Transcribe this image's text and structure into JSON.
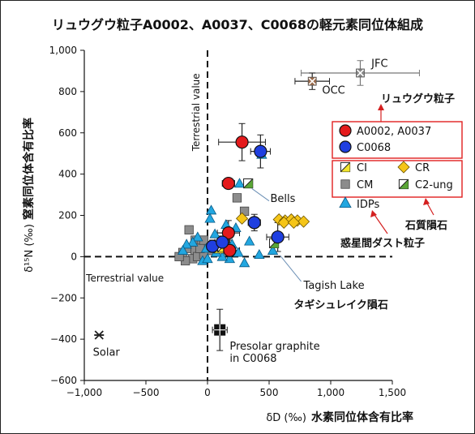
{
  "chart_data": {
    "type": "scatter",
    "title": "リュウグウ粒子A0002、A0037、C0068の軽元素同位体組成",
    "xlabel": "δD (‰)",
    "xlabel_jp": "水素同位体含有比率",
    "ylabel": "δ¹⁵N (‰)",
    "ylabel_jp": "窒素同位体含有比率",
    "xlim": [
      -1000,
      1500
    ],
    "ylim": [
      -600,
      1000
    ],
    "xticks": [
      -1000,
      -500,
      0,
      500,
      1000,
      1500
    ],
    "xtick_labels": [
      "−1,000",
      "−500",
      "0",
      "500",
      "1,000",
      "1,500"
    ],
    "yticks": [
      -600,
      -400,
      -200,
      0,
      200,
      400,
      600,
      800,
      1000
    ],
    "ytick_labels": [
      "−600",
      "−400",
      "−200",
      "0",
      "200",
      "400",
      "600",
      "800",
      "1,000"
    ],
    "grid": false,
    "reference_lines": [
      {
        "label": "Terrestrial value",
        "axis": "x",
        "value": 0
      },
      {
        "label": "Terrestrial value",
        "axis": "y",
        "value": 0
      }
    ],
    "annotations": [
      {
        "label": "JFC",
        "x": 1240,
        "y": 890
      },
      {
        "label": "OCC",
        "x": 850,
        "y": 850
      },
      {
        "label": "Bells",
        "x": 330,
        "y": 300
      },
      {
        "label": "Tagish Lake",
        "x": 590,
        "y": 0
      },
      {
        "label": "タギシュレイク隕石"
      },
      {
        "label": "Presolar graphite",
        "x": 100,
        "y": -360
      },
      {
        "label": "in C0068"
      },
      {
        "label": "Solar",
        "x": -880,
        "y": -380
      },
      {
        "label": "リュウグウ粒子"
      },
      {
        "label": "石質隕石"
      },
      {
        "label": "惑星間ダスト粒子"
      }
    ],
    "legend": {
      "placement": "right",
      "groups": [
        {
          "items": [
            {
              "name": "A0002, A0037",
              "marker": "circle",
              "color": "#e41a1c"
            },
            {
              "name": "C0068",
              "marker": "circle",
              "color": "#1f3fe0"
            }
          ]
        },
        {
          "items": [
            {
              "name": "CI",
              "marker": "square-half",
              "color": "#f2e52c"
            },
            {
              "name": "CR",
              "marker": "diamond",
              "color": "#f5c518"
            },
            {
              "name": "CM",
              "marker": "square",
              "color": "#8c8c8c"
            },
            {
              "name": "C2-ung",
              "marker": "square-half",
              "color": "#5aa636"
            }
          ]
        },
        {
          "items": [
            {
              "name": "IDPs",
              "marker": "triangle",
              "color": "#22a7e0"
            }
          ]
        }
      ]
    },
    "series": [
      {
        "name": "A0002, A0037",
        "color": "#e41a1c",
        "points": [
          {
            "x": 280,
            "y": 555,
            "xerr": 190,
            "yerr": 90
          },
          {
            "x": 170,
            "y": 355,
            "xerr": 50,
            "yerr": 25
          },
          {
            "x": 170,
            "y": 115,
            "xerr": 90,
            "yerr": 60
          },
          {
            "x": 180,
            "y": 30,
            "xerr": 80,
            "yerr": 50
          }
        ]
      },
      {
        "name": "C0068",
        "color": "#1f3fe0",
        "points": [
          {
            "x": 430,
            "y": 510,
            "xerr": 80,
            "yerr": 80
          },
          {
            "x": 380,
            "y": 165,
            "xerr": 50,
            "yerr": 40
          },
          {
            "x": 570,
            "y": 95,
            "xerr": 90,
            "yerr": 70
          },
          {
            "x": 40,
            "y": 50,
            "xerr": 40,
            "yerr": 30
          },
          {
            "x": 120,
            "y": 70,
            "xerr": 60,
            "yerr": 30
          }
        ]
      },
      {
        "name": "CI",
        "color": "#f2e52c",
        "points": [
          {
            "x": 90,
            "y": 40
          },
          {
            "x": 120,
            "y": 45
          }
        ]
      },
      {
        "name": "CR",
        "color": "#f5c518",
        "points": [
          {
            "x": 280,
            "y": 185
          },
          {
            "x": 580,
            "y": 180
          },
          {
            "x": 630,
            "y": 175
          },
          {
            "x": 680,
            "y": 180
          },
          {
            "x": 730,
            "y": 175
          },
          {
            "x": 780,
            "y": 170
          },
          {
            "x": 620,
            "y": 165
          },
          {
            "x": 700,
            "y": 165
          }
        ]
      },
      {
        "name": "CM",
        "color": "#8c8c8c",
        "points": [
          {
            "x": -150,
            "y": 130
          },
          {
            "x": -100,
            "y": 80
          },
          {
            "x": -50,
            "y": 60
          },
          {
            "x": -200,
            "y": 20
          },
          {
            "x": -150,
            "y": 40
          },
          {
            "x": -100,
            "y": 30
          },
          {
            "x": -50,
            "y": 20
          },
          {
            "x": 0,
            "y": 50
          },
          {
            "x": 20,
            "y": 30
          },
          {
            "x": -120,
            "y": -10
          },
          {
            "x": -180,
            "y": -20
          },
          {
            "x": -80,
            "y": 0
          },
          {
            "x": -30,
            "y": 10
          },
          {
            "x": -230,
            "y": 0
          },
          {
            "x": -60,
            "y": 40
          },
          {
            "x": 240,
            "y": 285
          },
          {
            "x": 300,
            "y": 220
          },
          {
            "x": -30,
            "y": 80
          }
        ]
      },
      {
        "name": "C2-ung",
        "color": "#5aa636",
        "points": [
          {
            "x": 330,
            "y": 355
          },
          {
            "x": 540,
            "y": 65
          }
        ]
      },
      {
        "name": "IDPs",
        "color": "#22a7e0",
        "points": [
          {
            "x": 440,
            "y": 495
          },
          {
            "x": 260,
            "y": 355
          },
          {
            "x": 30,
            "y": 225
          },
          {
            "x": 20,
            "y": 185
          },
          {
            "x": 150,
            "y": 155
          },
          {
            "x": 230,
            "y": 140
          },
          {
            "x": 60,
            "y": 110
          },
          {
            "x": 340,
            "y": 75
          },
          {
            "x": -80,
            "y": 95
          },
          {
            "x": -120,
            "y": 70
          },
          {
            "x": -170,
            "y": 60
          },
          {
            "x": -10,
            "y": 40
          },
          {
            "x": 100,
            "y": 60
          },
          {
            "x": 250,
            "y": 20
          },
          {
            "x": 180,
            "y": -10
          },
          {
            "x": 300,
            "y": -30
          },
          {
            "x": 420,
            "y": 10
          },
          {
            "x": 550,
            "y": 90
          },
          {
            "x": 530,
            "y": 30
          },
          {
            "x": -40,
            "y": -20
          },
          {
            "x": -200,
            "y": 30
          },
          {
            "x": 0,
            "y": -10
          },
          {
            "x": 120,
            "y": 0
          },
          {
            "x": 200,
            "y": 60
          },
          {
            "x": 70,
            "y": 20
          }
        ]
      },
      {
        "name": "JFC",
        "color": "#888888",
        "points": [
          {
            "x": 1240,
            "y": 890,
            "xerr": 480,
            "yerr": 60
          }
        ]
      },
      {
        "name": "OCC",
        "color": "#9a6a4a",
        "points": [
          {
            "x": 850,
            "y": 850,
            "xerr": 140,
            "yerr": 40
          }
        ]
      },
      {
        "name": "Solar",
        "color": "#222222",
        "points": [
          {
            "x": -880,
            "y": -380
          }
        ]
      },
      {
        "name": "Presolar graphite",
        "color": "#111111",
        "points": [
          {
            "x": 100,
            "y": -355,
            "xerr": 60,
            "yerr": 100
          }
        ]
      }
    ]
  }
}
